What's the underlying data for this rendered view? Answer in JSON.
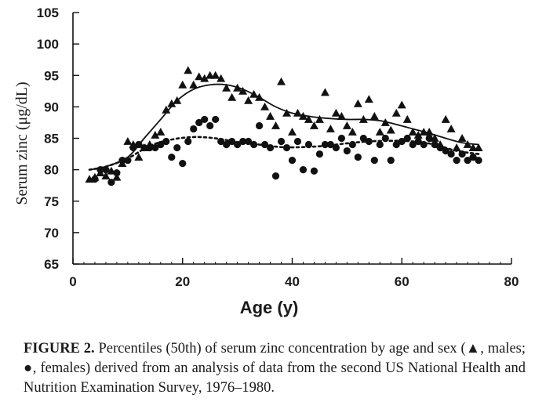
{
  "chart_data": {
    "type": "scatter",
    "title": "",
    "xlabel": "Age (y)",
    "ylabel": "Serum zinc (μg/dL)",
    "xlim": [
      0,
      80
    ],
    "ylim": [
      65,
      105
    ],
    "xticks": [
      0,
      20,
      40,
      60,
      80
    ],
    "yticks": [
      65,
      70,
      75,
      80,
      85,
      90,
      95,
      100,
      105
    ],
    "series": [
      {
        "name": "males",
        "marker": "triangle",
        "color": "#111111",
        "points": [
          [
            3,
            78.5
          ],
          [
            4,
            78.8
          ],
          [
            5,
            79.5
          ],
          [
            6,
            79
          ],
          [
            7,
            79.8
          ],
          [
            8,
            78.8
          ],
          [
            9,
            81
          ],
          [
            10,
            84.5
          ],
          [
            11,
            84
          ],
          [
            12,
            82
          ],
          [
            13,
            83.5
          ],
          [
            14,
            84
          ],
          [
            15,
            85.5
          ],
          [
            16,
            86
          ],
          [
            17,
            89.5
          ],
          [
            18,
            90.5
          ],
          [
            19,
            91
          ],
          [
            20,
            93.5
          ],
          [
            21,
            95.8
          ],
          [
            22,
            93.5
          ],
          [
            23,
            94.8
          ],
          [
            24,
            94.5
          ],
          [
            25,
            95
          ],
          [
            26,
            95
          ],
          [
            27,
            94.5
          ],
          [
            28,
            93
          ],
          [
            29,
            91.5
          ],
          [
            30,
            93
          ],
          [
            31,
            92.5
          ],
          [
            32,
            91
          ],
          [
            33,
            92
          ],
          [
            34,
            91.5
          ],
          [
            35,
            90
          ],
          [
            36,
            88.5
          ],
          [
            37,
            87
          ],
          [
            38,
            94
          ],
          [
            39,
            89
          ],
          [
            40,
            86
          ],
          [
            41,
            89
          ],
          [
            42,
            88.5
          ],
          [
            43,
            88
          ],
          [
            44,
            87
          ],
          [
            45,
            88
          ],
          [
            46,
            92.3
          ],
          [
            47,
            86.5
          ],
          [
            48,
            89
          ],
          [
            49,
            88.5
          ],
          [
            50,
            87
          ],
          [
            51,
            86
          ],
          [
            52,
            90.5
          ],
          [
            53,
            88
          ],
          [
            54,
            91.2
          ],
          [
            55,
            88.5
          ],
          [
            56,
            86
          ],
          [
            57,
            87.5
          ],
          [
            58,
            86.3
          ],
          [
            59,
            89
          ],
          [
            60,
            90.3
          ],
          [
            61,
            88
          ],
          [
            62,
            86
          ],
          [
            63,
            85.5
          ],
          [
            64,
            86
          ],
          [
            65,
            86
          ],
          [
            66,
            85
          ],
          [
            67,
            84
          ],
          [
            68,
            88
          ],
          [
            69,
            86.5
          ],
          [
            70,
            83.5
          ],
          [
            71,
            85
          ],
          [
            72,
            84
          ],
          [
            73,
            83.5
          ],
          [
            74,
            83.5
          ]
        ]
      },
      {
        "name": "females",
        "marker": "circle",
        "color": "#111111",
        "points": [
          [
            4,
            78.5
          ],
          [
            5,
            80
          ],
          [
            6,
            80
          ],
          [
            7,
            78
          ],
          [
            8,
            79.5
          ],
          [
            9,
            81.5
          ],
          [
            10,
            81.5
          ],
          [
            11,
            83.5
          ],
          [
            12,
            84
          ],
          [
            13,
            83.5
          ],
          [
            14,
            83.5
          ],
          [
            15,
            83.5
          ],
          [
            16,
            84
          ],
          [
            17,
            84.5
          ],
          [
            18,
            82
          ],
          [
            19,
            83.5
          ],
          [
            20,
            81
          ],
          [
            21,
            84.5
          ],
          [
            22,
            86.5
          ],
          [
            23,
            87.5
          ],
          [
            24,
            88
          ],
          [
            25,
            87
          ],
          [
            26,
            88
          ],
          [
            27,
            84.5
          ],
          [
            28,
            84
          ],
          [
            29,
            84.5
          ],
          [
            30,
            84
          ],
          [
            31,
            84.5
          ],
          [
            32,
            84.5
          ],
          [
            33,
            84
          ],
          [
            34,
            87
          ],
          [
            35,
            84
          ],
          [
            36,
            83.5
          ],
          [
            37,
            79
          ],
          [
            38,
            84.5
          ],
          [
            39,
            83.5
          ],
          [
            40,
            81.5
          ],
          [
            41,
            84.5
          ],
          [
            42,
            80
          ],
          [
            43,
            84
          ],
          [
            44,
            79.8
          ],
          [
            45,
            82.5
          ],
          [
            46,
            84
          ],
          [
            47,
            84
          ],
          [
            48,
            83.5
          ],
          [
            49,
            85
          ],
          [
            50,
            83
          ],
          [
            51,
            84
          ],
          [
            52,
            82
          ],
          [
            53,
            85
          ],
          [
            54,
            84.5
          ],
          [
            55,
            81.5
          ],
          [
            56,
            84
          ],
          [
            57,
            85
          ],
          [
            58,
            81.5
          ],
          [
            59,
            84
          ],
          [
            60,
            84.5
          ],
          [
            61,
            85
          ],
          [
            62,
            84
          ],
          [
            63,
            84.5
          ],
          [
            64,
            84
          ],
          [
            65,
            85
          ],
          [
            66,
            84
          ],
          [
            67,
            83.5
          ],
          [
            68,
            83
          ],
          [
            69,
            82.5
          ],
          [
            70,
            81.5
          ],
          [
            71,
            82.5
          ],
          [
            72,
            81.5
          ],
          [
            73,
            82
          ],
          [
            74,
            81.5
          ]
        ]
      }
    ],
    "fits": [
      {
        "name": "males-fit",
        "style": "solid",
        "points": [
          [
            3,
            80
          ],
          [
            6,
            80.5
          ],
          [
            10,
            82
          ],
          [
            13,
            85
          ],
          [
            16,
            88
          ],
          [
            19,
            91
          ],
          [
            22,
            92.8
          ],
          [
            25,
            93.5
          ],
          [
            28,
            93.5
          ],
          [
            31,
            92.8
          ],
          [
            34,
            91.5
          ],
          [
            37,
            90
          ],
          [
            40,
            89
          ],
          [
            43,
            88.5
          ],
          [
            46,
            88.2
          ],
          [
            50,
            88
          ],
          [
            53,
            88
          ],
          [
            56,
            87.8
          ],
          [
            59,
            87.2
          ],
          [
            62,
            86.5
          ],
          [
            65,
            85.8
          ],
          [
            68,
            85
          ],
          [
            71,
            84.3
          ],
          [
            74,
            84
          ]
        ]
      },
      {
        "name": "females-fit",
        "style": "dotted",
        "points": [
          [
            3,
            80
          ],
          [
            6,
            80.5
          ],
          [
            10,
            81.8
          ],
          [
            14,
            83.8
          ],
          [
            18,
            84.8
          ],
          [
            22,
            85.2
          ],
          [
            26,
            85
          ],
          [
            30,
            84.4
          ],
          [
            34,
            84
          ],
          [
            38,
            83.6
          ],
          [
            42,
            83.6
          ],
          [
            46,
            83.8
          ],
          [
            50,
            84.2
          ],
          [
            54,
            84.5
          ],
          [
            58,
            84.6
          ],
          [
            62,
            84.5
          ],
          [
            66,
            84
          ],
          [
            70,
            83
          ],
          [
            74,
            82.5
          ]
        ]
      }
    ]
  },
  "caption": {
    "label": "FIGURE 2.",
    "text": "Percentiles (50th) of serum zinc concentration by age and sex (▲, males; ●, females) derived from an analysis of data from the second US National Health and Nutrition Examination Survey, 1976–1980."
  }
}
